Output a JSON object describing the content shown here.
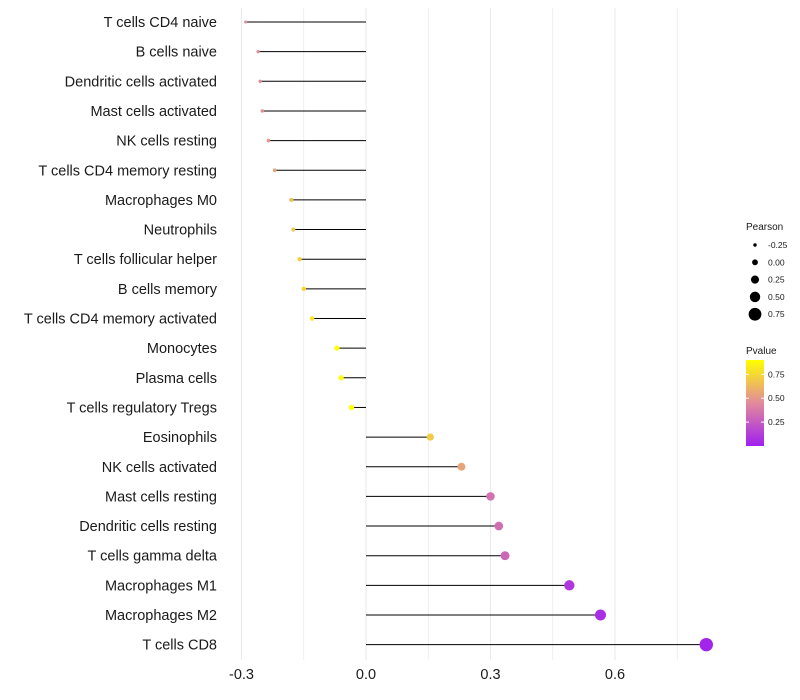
{
  "chart_data": {
    "type": "lollipop",
    "title": "",
    "xlabel": "",
    "ylabel": "",
    "xlim": [
      -0.31,
      0.83
    ],
    "xticks": [
      -0.3,
      0.0,
      0.3,
      0.6
    ],
    "xtick_labels": [
      "-0.3",
      "0.0",
      "0.3",
      "0.6"
    ],
    "categories": [
      "T cells CD4 naive",
      "B cells naive",
      "Dendritic cells activated",
      "Mast cells activated",
      "NK cells resting",
      "T cells CD4 memory resting",
      "Macrophages M0",
      "Neutrophils",
      "T cells follicular helper",
      "B cells memory",
      "T cells CD4 memory activated",
      "Monocytes",
      "Plasma cells",
      "T cells regulatory  Tregs",
      "Eosinophils",
      "NK cells activated",
      "Mast cells resting",
      "Dendritic cells resting",
      "T cells gamma delta",
      "Macrophages M1",
      "Macrophages M2",
      "T cells CD8"
    ],
    "pearson": [
      -0.29,
      -0.26,
      -0.255,
      -0.25,
      -0.235,
      -0.22,
      -0.18,
      -0.175,
      -0.16,
      -0.15,
      -0.13,
      -0.07,
      -0.06,
      -0.035,
      0.155,
      0.23,
      0.3,
      0.32,
      0.335,
      0.49,
      0.565,
      0.82
    ],
    "pvalue": [
      0.45,
      0.45,
      0.45,
      0.47,
      0.5,
      0.55,
      0.65,
      0.68,
      0.72,
      0.75,
      0.8,
      0.9,
      0.93,
      0.97,
      0.7,
      0.55,
      0.35,
      0.33,
      0.3,
      0.1,
      0.06,
      0.02
    ],
    "legend_pearson": {
      "title": "Pearson",
      "values": [
        -0.25,
        0.0,
        0.25,
        0.5,
        0.75
      ],
      "labels": [
        "-0.25",
        "0.00",
        "0.25",
        "0.50",
        "0.75"
      ]
    },
    "legend_pvalue": {
      "title": "Pvalue",
      "range": [
        0.0,
        0.9
      ],
      "ticks": [
        0.25,
        0.5,
        0.75
      ],
      "labels": [
        "0.25",
        "0.50",
        "0.75"
      ]
    },
    "colors": {
      "low": "#a020f0",
      "mid": "#e28a9c",
      "high": "#ffff00",
      "grid": "#ebebeb",
      "stem": "#000000"
    }
  }
}
